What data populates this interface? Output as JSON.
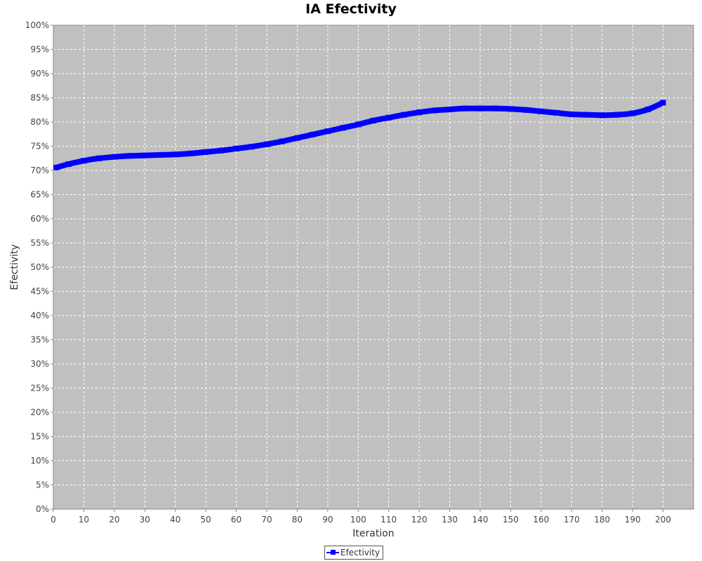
{
  "chart_data": {
    "type": "line",
    "title": "IA Efectivity",
    "xlabel": "Iteration",
    "ylabel": "Efectivity",
    "xlim": [
      0,
      210
    ],
    "ylim": [
      0,
      100
    ],
    "x_ticks": [
      0,
      10,
      20,
      30,
      40,
      50,
      60,
      70,
      80,
      90,
      100,
      110,
      120,
      130,
      140,
      150,
      160,
      170,
      180,
      190,
      200
    ],
    "y_ticks": [
      "0%",
      "5%",
      "10%",
      "15%",
      "20%",
      "25%",
      "30%",
      "35%",
      "40%",
      "45%",
      "50%",
      "55%",
      "60%",
      "65%",
      "70%",
      "75%",
      "80%",
      "85%",
      "90%",
      "95%",
      "100%"
    ],
    "y_tick_values": [
      0,
      5,
      10,
      15,
      20,
      25,
      30,
      35,
      40,
      45,
      50,
      55,
      60,
      65,
      70,
      75,
      80,
      85,
      90,
      95,
      100
    ],
    "grid": true,
    "background_color": "#c0c0c0",
    "legend_position": "bottom-center",
    "series": [
      {
        "name": "Efectivity",
        "color": "#0000ff",
        "marker": "square",
        "x": [
          1,
          5,
          10,
          15,
          20,
          25,
          30,
          35,
          40,
          45,
          50,
          55,
          60,
          65,
          70,
          75,
          80,
          85,
          90,
          95,
          100,
          105,
          110,
          115,
          120,
          125,
          130,
          135,
          140,
          145,
          150,
          155,
          160,
          165,
          170,
          175,
          180,
          185,
          190,
          195,
          200
        ],
        "values": [
          70.6,
          71.3,
          72.0,
          72.5,
          72.8,
          73.0,
          73.1,
          73.2,
          73.3,
          73.5,
          73.8,
          74.1,
          74.5,
          74.9,
          75.4,
          76.0,
          76.7,
          77.4,
          78.1,
          78.8,
          79.5,
          80.3,
          80.9,
          81.5,
          82.0,
          82.4,
          82.6,
          82.8,
          82.8,
          82.8,
          82.7,
          82.5,
          82.2,
          81.9,
          81.6,
          81.5,
          81.4,
          81.5,
          81.8,
          82.6,
          84.0
        ]
      }
    ]
  }
}
